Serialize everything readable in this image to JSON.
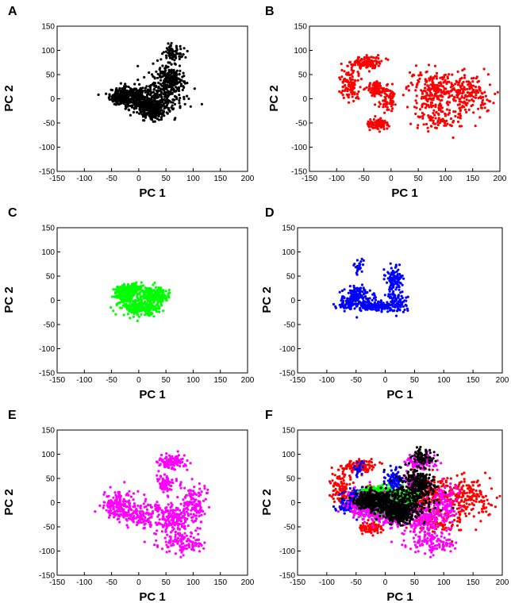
{
  "chart_data": [
    {
      "panel": "A",
      "type": "scatter",
      "color": "#000000",
      "xlabel": "PC 1",
      "ylabel": "PC 2",
      "xlim": [
        -150,
        200
      ],
      "ylim": [
        -150,
        150
      ],
      "xticks": [
        "-150",
        "-100",
        "-50",
        "0",
        "50",
        "100",
        "150",
        "200"
      ],
      "yticks": [
        "150",
        "100",
        "50",
        "0",
        "-50",
        "-100",
        "-150"
      ],
      "clusters": [
        {
          "cx": -25,
          "cy": 5,
          "sx": 14,
          "sy": 9,
          "n": 260
        },
        {
          "cx": 25,
          "cy": -20,
          "sx": 14,
          "sy": 11,
          "n": 320
        },
        {
          "cx": 10,
          "cy": 0,
          "sx": 20,
          "sy": 14,
          "n": 200
        },
        {
          "cx": 55,
          "cy": 20,
          "sx": 18,
          "sy": 18,
          "n": 220
        },
        {
          "cx": 55,
          "cy": 50,
          "sx": 12,
          "sy": 12,
          "n": 90
        },
        {
          "cx": 65,
          "cy": 95,
          "sx": 10,
          "sy": 10,
          "n": 70
        },
        {
          "cx": -40,
          "cy": 0,
          "sx": 6,
          "sy": 5,
          "n": 40
        }
      ]
    },
    {
      "panel": "B",
      "type": "scatter",
      "color": "#ff0000",
      "xlabel": "PC 1",
      "ylabel": "PC 2",
      "xlim": [
        -150,
        200
      ],
      "ylim": [
        -150,
        150
      ],
      "xticks": [
        "-150",
        "-100",
        "-50",
        "0",
        "50",
        "100",
        "150",
        "200"
      ],
      "yticks": [
        "150",
        "100",
        "50",
        "0",
        "-50",
        "-100",
        "-150"
      ],
      "clusters": [
        {
          "cx": -45,
          "cy": 75,
          "sx": 14,
          "sy": 7,
          "n": 120
        },
        {
          "cx": -75,
          "cy": 30,
          "sx": 9,
          "sy": 18,
          "n": 110
        },
        {
          "cx": -30,
          "cy": 20,
          "sx": 9,
          "sy": 8,
          "n": 80
        },
        {
          "cx": -5,
          "cy": 0,
          "sx": 8,
          "sy": 12,
          "n": 70
        },
        {
          "cx": -25,
          "cy": -52,
          "sx": 9,
          "sy": 5,
          "n": 90
        },
        {
          "cx": 75,
          "cy": 15,
          "sx": 22,
          "sy": 22,
          "n": 220
        },
        {
          "cx": 140,
          "cy": 10,
          "sx": 22,
          "sy": 18,
          "n": 170
        },
        {
          "cx": 90,
          "cy": -40,
          "sx": 25,
          "sy": 15,
          "n": 90
        }
      ]
    },
    {
      "panel": "C",
      "type": "scatter",
      "color": "#00ff00",
      "xlabel": "PC 1",
      "ylabel": "PC 2",
      "xlim": [
        -150,
        200
      ],
      "ylim": [
        -150,
        150
      ],
      "xticks": [
        "-150",
        "-100",
        "-50",
        "0",
        "50",
        "100",
        "150",
        "200"
      ],
      "yticks": [
        "150",
        "100",
        "50",
        "0",
        "-50",
        "-100",
        "-150"
      ],
      "clusters": [
        {
          "cx": -25,
          "cy": 12,
          "sx": 10,
          "sy": 8,
          "n": 220
        },
        {
          "cx": 30,
          "cy": 10,
          "sx": 12,
          "sy": 8,
          "n": 220
        },
        {
          "cx": 0,
          "cy": -15,
          "sx": 18,
          "sy": 8,
          "n": 240
        },
        {
          "cx": -5,
          "cy": 25,
          "sx": 14,
          "sy": 5,
          "n": 90
        }
      ]
    },
    {
      "panel": "D",
      "type": "scatter",
      "color": "#0000ff",
      "xlabel": "PC 1",
      "ylabel": "PC 2",
      "xlim": [
        -150,
        200
      ],
      "ylim": [
        -150,
        150
      ],
      "xticks": [
        "-150",
        "-100",
        "-50",
        "0",
        "50",
        "100",
        "150",
        "200"
      ],
      "yticks": [
        "150",
        "100",
        "50",
        "0",
        "-50",
        "-100",
        "-150"
      ],
      "clusters": [
        {
          "cx": -50,
          "cy": 5,
          "sx": 12,
          "sy": 12,
          "n": 170
        },
        {
          "cx": -15,
          "cy": -12,
          "sx": 15,
          "sy": 5,
          "n": 140
        },
        {
          "cx": 15,
          "cy": 40,
          "sx": 7,
          "sy": 15,
          "n": 110
        },
        {
          "cx": 20,
          "cy": -5,
          "sx": 8,
          "sy": 10,
          "n": 80
        },
        {
          "cx": -45,
          "cy": 70,
          "sx": 4,
          "sy": 8,
          "n": 25
        },
        {
          "cx": -70,
          "cy": -10,
          "sx": 8,
          "sy": 5,
          "n": 30
        }
      ]
    },
    {
      "panel": "E",
      "type": "scatter",
      "color": "#ff00ff",
      "xlabel": "PC 1",
      "ylabel": "PC 2",
      "xlim": [
        -150,
        200
      ],
      "ylim": [
        -150,
        150
      ],
      "xticks": [
        "-150",
        "-100",
        "-50",
        "0",
        "50",
        "100",
        "150",
        "200"
      ],
      "yticks": [
        "150",
        "100",
        "50",
        "0",
        "-50",
        "-100",
        "-150"
      ],
      "clusters": [
        {
          "cx": 60,
          "cy": 85,
          "sx": 12,
          "sy": 8,
          "n": 110
        },
        {
          "cx": 50,
          "cy": 40,
          "sx": 10,
          "sy": 10,
          "n": 80
        },
        {
          "cx": -40,
          "cy": -5,
          "sx": 14,
          "sy": 15,
          "n": 150
        },
        {
          "cx": 0,
          "cy": -25,
          "sx": 18,
          "sy": 12,
          "n": 130
        },
        {
          "cx": 60,
          "cy": -35,
          "sx": 20,
          "sy": 20,
          "n": 200
        },
        {
          "cx": 80,
          "cy": -85,
          "sx": 18,
          "sy": 12,
          "n": 100
        },
        {
          "cx": 100,
          "cy": 0,
          "sx": 12,
          "sy": 20,
          "n": 120
        }
      ]
    },
    {
      "panel": "F",
      "type": "scatter",
      "overlay_of": [
        "B",
        "D",
        "C",
        "E",
        "A"
      ],
      "xlabel": "PC 1",
      "ylabel": "PC 2",
      "xlim": [
        -150,
        200
      ],
      "ylim": [
        -150,
        150
      ],
      "xticks": [
        "-150",
        "-100",
        "-50",
        "0",
        "50",
        "100",
        "150",
        "200"
      ],
      "yticks": [
        "150",
        "100",
        "50",
        "0",
        "-50",
        "-100",
        "-150"
      ]
    }
  ]
}
